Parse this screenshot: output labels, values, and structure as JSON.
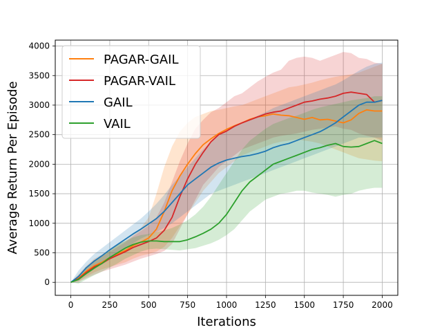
{
  "chart_data": {
    "type": "line",
    "title": "",
    "xlabel": "Iterations",
    "ylabel": "Average Return Per Episode",
    "xlim": [
      -100,
      2100
    ],
    "ylim": [
      -220,
      4100
    ],
    "xticks": [
      0,
      250,
      500,
      750,
      1000,
      1250,
      1500,
      1750,
      2000
    ],
    "yticks": [
      0,
      500,
      1000,
      1500,
      2000,
      2500,
      3000,
      3500,
      4000
    ],
    "grid": true,
    "legend_position": "top-left",
    "x": [
      0,
      50,
      100,
      150,
      200,
      250,
      300,
      350,
      400,
      450,
      500,
      550,
      600,
      650,
      700,
      750,
      800,
      850,
      900,
      950,
      1000,
      1050,
      1100,
      1150,
      1200,
      1250,
      1300,
      1350,
      1400,
      1450,
      1500,
      1550,
      1600,
      1650,
      1700,
      1750,
      1800,
      1850,
      1900,
      1950,
      2000
    ],
    "series": [
      {
        "name": "PAGAR-GAIL",
        "color": "#ff7f0e",
        "mean": [
          0,
          70,
          190,
          280,
          340,
          420,
          480,
          540,
          620,
          680,
          750,
          900,
          1200,
          1550,
          1800,
          2000,
          2180,
          2330,
          2430,
          2520,
          2590,
          2650,
          2700,
          2760,
          2800,
          2820,
          2850,
          2830,
          2820,
          2790,
          2760,
          2790,
          2750,
          2760,
          2730,
          2700,
          2750,
          2860,
          2920,
          2900,
          2900
        ],
        "upper": [
          0,
          140,
          280,
          400,
          470,
          560,
          640,
          700,
          800,
          920,
          1100,
          1500,
          1950,
          2300,
          2550,
          2700,
          2800,
          2850,
          2900,
          2920,
          2950,
          2980,
          3000,
          3050,
          3100,
          3150,
          3200,
          3250,
          3300,
          3320,
          3350,
          3380,
          3420,
          3450,
          3480,
          3500,
          3520,
          3550,
          3600,
          3650,
          3700
        ],
        "lower": [
          0,
          20,
          100,
          170,
          220,
          260,
          300,
          340,
          400,
          450,
          480,
          520,
          600,
          750,
          950,
          1150,
          1350,
          1550,
          1700,
          1850,
          1950,
          2050,
          2150,
          2200,
          2250,
          2300,
          2350,
          2380,
          2400,
          2420,
          2400,
          2380,
          2350,
          2300,
          2250,
          2200,
          2150,
          2100,
          2080,
          2060,
          2050
        ]
      },
      {
        "name": "PAGAR-VAIL",
        "color": "#d62728",
        "mean": [
          0,
          60,
          170,
          260,
          320,
          400,
          460,
          520,
          590,
          640,
          690,
          750,
          880,
          1100,
          1450,
          1750,
          2000,
          2200,
          2380,
          2500,
          2560,
          2640,
          2700,
          2750,
          2800,
          2850,
          2880,
          2900,
          2950,
          3000,
          3050,
          3070,
          3100,
          3120,
          3150,
          3200,
          3220,
          3200,
          3180,
          3050,
          3080
        ],
        "upper": [
          0,
          120,
          260,
          380,
          440,
          520,
          600,
          680,
          780,
          870,
          960,
          1100,
          1350,
          1700,
          2050,
          2350,
          2600,
          2750,
          2880,
          2950,
          3050,
          3150,
          3200,
          3300,
          3400,
          3480,
          3550,
          3600,
          3750,
          3800,
          3820,
          3800,
          3750,
          3800,
          3850,
          3900,
          3880,
          3800,
          3780,
          3720,
          3700
        ],
        "lower": [
          0,
          10,
          70,
          130,
          180,
          220,
          260,
          300,
          350,
          400,
          440,
          480,
          530,
          650,
          900,
          1150,
          1400,
          1650,
          1800,
          1950,
          2050,
          2150,
          2250,
          2300,
          2350,
          2400,
          2450,
          2480,
          2500,
          2520,
          2550,
          2580,
          2600,
          2620,
          2640,
          2600,
          2580,
          2520,
          2480,
          2450,
          2400
        ]
      },
      {
        "name": "GAIL",
        "color": "#1f77b4",
        "mean": [
          0,
          100,
          250,
          360,
          450,
          550,
          640,
          730,
          820,
          900,
          990,
          1080,
          1200,
          1350,
          1500,
          1650,
          1750,
          1850,
          1950,
          2020,
          2070,
          2100,
          2130,
          2150,
          2180,
          2220,
          2280,
          2320,
          2350,
          2400,
          2450,
          2500,
          2550,
          2620,
          2700,
          2800,
          2900,
          3000,
          3050,
          3050,
          3080
        ],
        "upper": [
          0,
          200,
          350,
          480,
          580,
          680,
          780,
          880,
          980,
          1080,
          1200,
          1330,
          1480,
          1650,
          1800,
          1950,
          2100,
          2250,
          2380,
          2480,
          2560,
          2630,
          2700,
          2760,
          2820,
          2880,
          2950,
          3000,
          3050,
          3100,
          3150,
          3200,
          3250,
          3300,
          3350,
          3420,
          3500,
          3580,
          3650,
          3700,
          3720
        ],
        "lower": [
          0,
          30,
          150,
          250,
          330,
          420,
          500,
          580,
          660,
          740,
          800,
          850,
          920,
          1000,
          1100,
          1200,
          1300,
          1400,
          1500,
          1550,
          1600,
          1650,
          1700,
          1750,
          1800,
          1850,
          1900,
          1950,
          2000,
          2050,
          2100,
          2150,
          2200,
          2250,
          2300,
          2350,
          2400,
          2450,
          2450,
          2450,
          2450
        ]
      },
      {
        "name": "VAIL",
        "color": "#2ca02c",
        "mean": [
          0,
          50,
          150,
          240,
          320,
          420,
          500,
          580,
          640,
          680,
          700,
          700,
          690,
          690,
          690,
          720,
          770,
          830,
          900,
          1000,
          1150,
          1350,
          1550,
          1700,
          1800,
          1900,
          2000,
          2050,
          2100,
          2150,
          2200,
          2250,
          2280,
          2320,
          2350,
          2300,
          2290,
          2300,
          2350,
          2400,
          2350
        ],
        "upper": [
          0,
          120,
          250,
          370,
          460,
          560,
          640,
          700,
          760,
          800,
          820,
          850,
          880,
          920,
          980,
          1050,
          1150,
          1280,
          1450,
          1650,
          1850,
          2050,
          2250,
          2400,
          2500,
          2600,
          2680,
          2730,
          2780,
          2820,
          2870,
          2920,
          2960,
          2990,
          3020,
          3050,
          3080,
          3100,
          3120,
          3150,
          3150
        ],
        "lower": [
          0,
          -20,
          50,
          120,
          180,
          250,
          320,
          400,
          460,
          520,
          560,
          570,
          560,
          550,
          540,
          560,
          580,
          620,
          660,
          720,
          800,
          900,
          1050,
          1200,
          1300,
          1400,
          1450,
          1500,
          1520,
          1550,
          1550,
          1520,
          1500,
          1480,
          1450,
          1480,
          1500,
          1550,
          1580,
          1600,
          1600
        ]
      }
    ]
  }
}
